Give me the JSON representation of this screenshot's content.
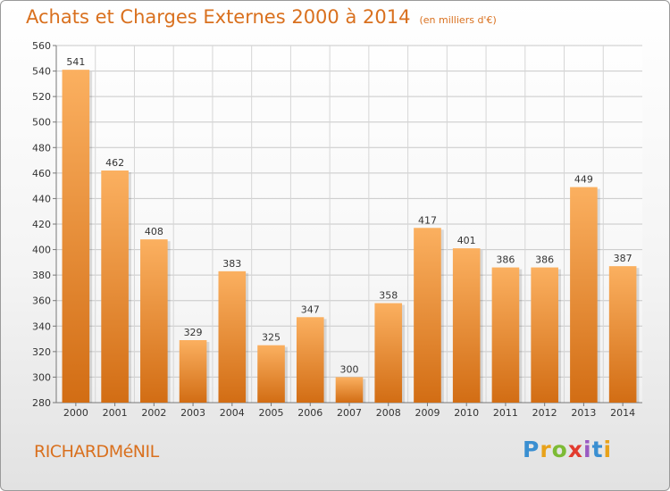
{
  "title": "Achats et Charges Externes 2000 à 2014",
  "unit": "(en milliers d'€)",
  "city": "RICHARDMéNIL",
  "logo": {
    "letters": [
      "P",
      "r",
      "o",
      "x",
      "i",
      "t",
      "i"
    ],
    "colors": [
      "#3a8fd1",
      "#e8a21a",
      "#7dbb35",
      "#e23b2e",
      "#9a5bc2",
      "#3a8fd1",
      "#e8a21a"
    ]
  },
  "colors": {
    "bar_light": "#fbb060",
    "bar_dark": "#d26d14",
    "accent": "#d9701e"
  },
  "chart_data": {
    "type": "bar",
    "categories": [
      "2000",
      "2001",
      "2002",
      "2003",
      "2004",
      "2005",
      "2006",
      "2007",
      "2008",
      "2009",
      "2010",
      "2011",
      "2012",
      "2013",
      "2014"
    ],
    "values": [
      541,
      462,
      408,
      329,
      383,
      325,
      347,
      300,
      358,
      417,
      401,
      386,
      386,
      449,
      387
    ],
    "title": "Achats et Charges Externes 2000 à 2014",
    "ylim": [
      280,
      560
    ],
    "yticks": [
      280,
      300,
      320,
      340,
      360,
      380,
      400,
      420,
      440,
      460,
      480,
      500,
      520,
      540,
      560
    ],
    "grid": true
  }
}
